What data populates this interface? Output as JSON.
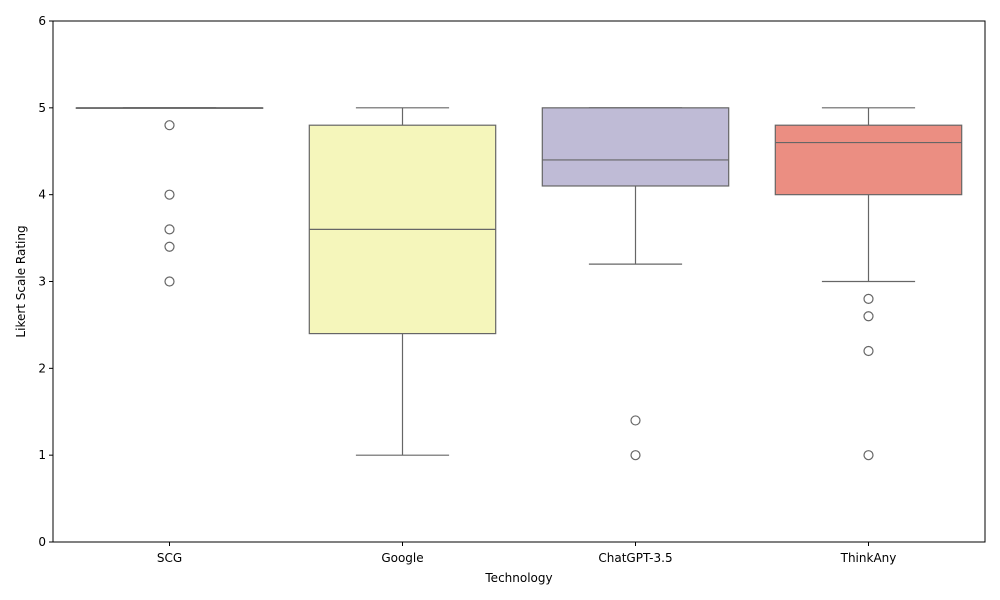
{
  "chart_data": {
    "type": "box",
    "xlabel": "Technology",
    "ylabel": "Likert Scale Rating",
    "ylim": [
      0,
      6
    ],
    "yticks": [
      0,
      1,
      2,
      3,
      4,
      5,
      6
    ],
    "grid": false,
    "categories": [
      "SCG",
      "Google",
      "ChatGPT-3.5",
      "ThinkAny"
    ],
    "boxes": [
      {
        "category": "SCG",
        "whisker_low": 5.0,
        "q1": 5.0,
        "median": 5.0,
        "q3": 5.0,
        "whisker_high": 5.0,
        "outliers": [
          4.8,
          4.0,
          3.6,
          3.4,
          3.0
        ],
        "color": "#8dd3c7"
      },
      {
        "category": "Google",
        "whisker_low": 1.0,
        "q1": 2.4,
        "median": 3.6,
        "q3": 4.8,
        "whisker_high": 5.0,
        "outliers": [],
        "color": "#f5f6bb"
      },
      {
        "category": "ChatGPT-3.5",
        "whisker_low": 3.2,
        "q1": 4.1,
        "median": 4.4,
        "q3": 5.0,
        "whisker_high": 5.0,
        "outliers": [
          1.4,
          1.0
        ],
        "color": "#bfbbd6"
      },
      {
        "category": "ThinkAny",
        "whisker_low": 3.0,
        "q1": 4.0,
        "median": 4.6,
        "q3": 4.8,
        "whisker_high": 5.0,
        "outliers": [
          2.8,
          2.6,
          2.2,
          1.0
        ],
        "color": "#eb8e82"
      }
    ],
    "line_color": "#666666"
  }
}
